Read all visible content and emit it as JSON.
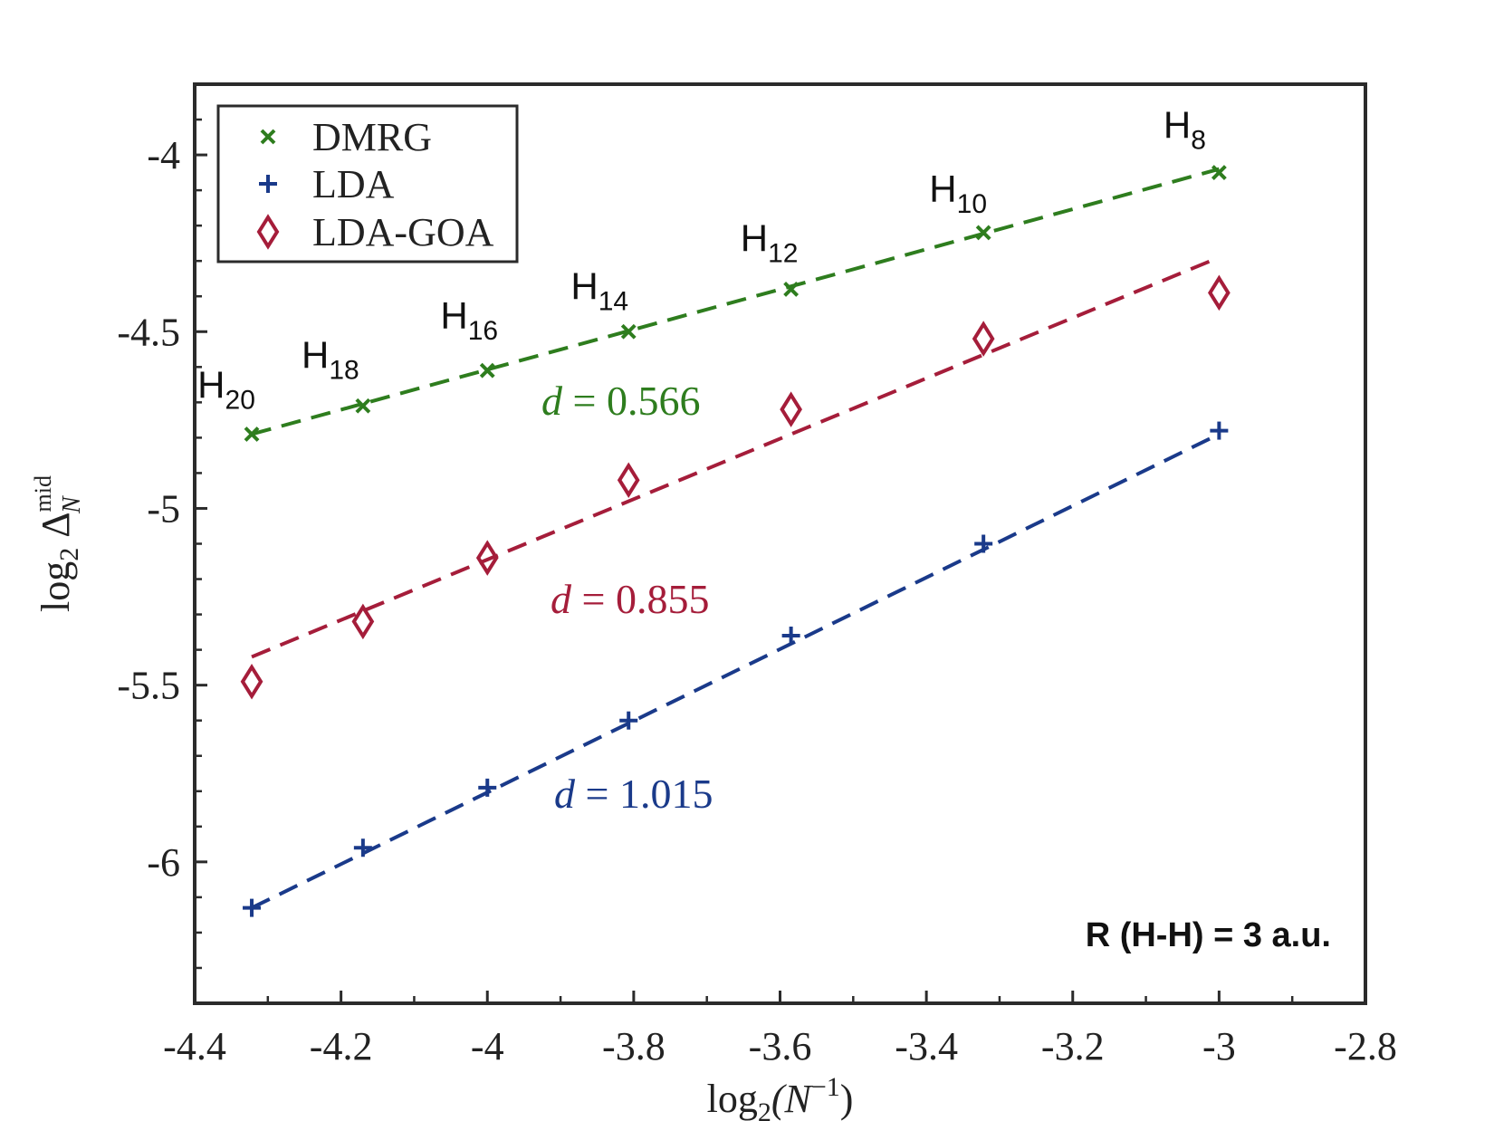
{
  "chart_data": {
    "type": "scatter",
    "xlabel_parts": {
      "base": "log",
      "sub": "2",
      "arg": "(N",
      "sup": "−1",
      "close": ")"
    },
    "ylabel_parts": {
      "base": "log",
      "sub": "2",
      "sym": "Δ",
      "sup": "mid",
      "symsub": "N"
    },
    "xlim": [
      -4.4,
      -2.8
    ],
    "ylim": [
      -6.4,
      -3.8
    ],
    "x_ticks": [
      -4.4,
      -4.2,
      -4.0,
      -3.8,
      -3.6,
      -3.4,
      -3.2,
      -3.0,
      -2.8
    ],
    "x_tick_labels": [
      "-4.4",
      "-4.2",
      "-4",
      "-3.8",
      "-3.6",
      "-3.4",
      "-3.2",
      "-3",
      "-2.8"
    ],
    "y_ticks": [
      -6,
      -5.5,
      -5,
      -4.5,
      -4
    ],
    "y_tick_labels": [
      "-6",
      "-5.5",
      "-5",
      "-4.5",
      "-4"
    ],
    "legend_position": "top-left",
    "series": [
      {
        "name": "DMRG",
        "marker": "x",
        "color": "#2e7d1e",
        "x": [
          -4.322,
          -4.17,
          -4.0,
          -3.807,
          -3.585,
          -3.322,
          -3.0
        ],
        "y": [
          -4.79,
          -4.71,
          -4.61,
          -4.5,
          -4.38,
          -4.22,
          -4.05
        ],
        "fit_x": [
          -4.322,
          -3.0
        ],
        "fit_y": [
          -4.79,
          -4.04
        ],
        "slope_label": {
          "d": "d",
          "eq": "=",
          "value": "0.566"
        }
      },
      {
        "name": "LDA",
        "marker": "+",
        "color": "#1a3a8a",
        "x": [
          -4.322,
          -4.17,
          -4.0,
          -3.807,
          -3.585,
          -3.322,
          -3.0
        ],
        "y": [
          -6.13,
          -5.96,
          -5.79,
          -5.6,
          -5.36,
          -5.1,
          -4.78
        ],
        "fit_x": [
          -4.322,
          -3.0
        ],
        "fit_y": [
          -6.13,
          -4.79
        ],
        "slope_label": {
          "d": "d",
          "eq": "=",
          "value": "1.015"
        }
      },
      {
        "name": "LDA-GOA",
        "marker": "diamond",
        "color": "#a51d3a",
        "x": [
          -4.322,
          -4.17,
          -4.0,
          -3.807,
          -3.585,
          -3.322,
          -3.0
        ],
        "y": [
          -5.49,
          -5.32,
          -5.14,
          -4.92,
          -4.72,
          -4.52,
          -4.39
        ],
        "fit_x": [
          -4.322,
          -3.0
        ],
        "fit_y": [
          -5.42,
          -4.29
        ],
        "slope_label": {
          "d": "d",
          "eq": "=",
          "value": "0.855"
        }
      }
    ],
    "point_labels": [
      {
        "main": "H",
        "sub": "20"
      },
      {
        "main": "H",
        "sub": "18"
      },
      {
        "main": "H",
        "sub": "16"
      },
      {
        "main": "H",
        "sub": "14"
      },
      {
        "main": "H",
        "sub": "12"
      },
      {
        "main": "H",
        "sub": "10"
      },
      {
        "main": "H",
        "sub": "8"
      }
    ],
    "annotation": "R (H-H) = 3 a.u."
  }
}
